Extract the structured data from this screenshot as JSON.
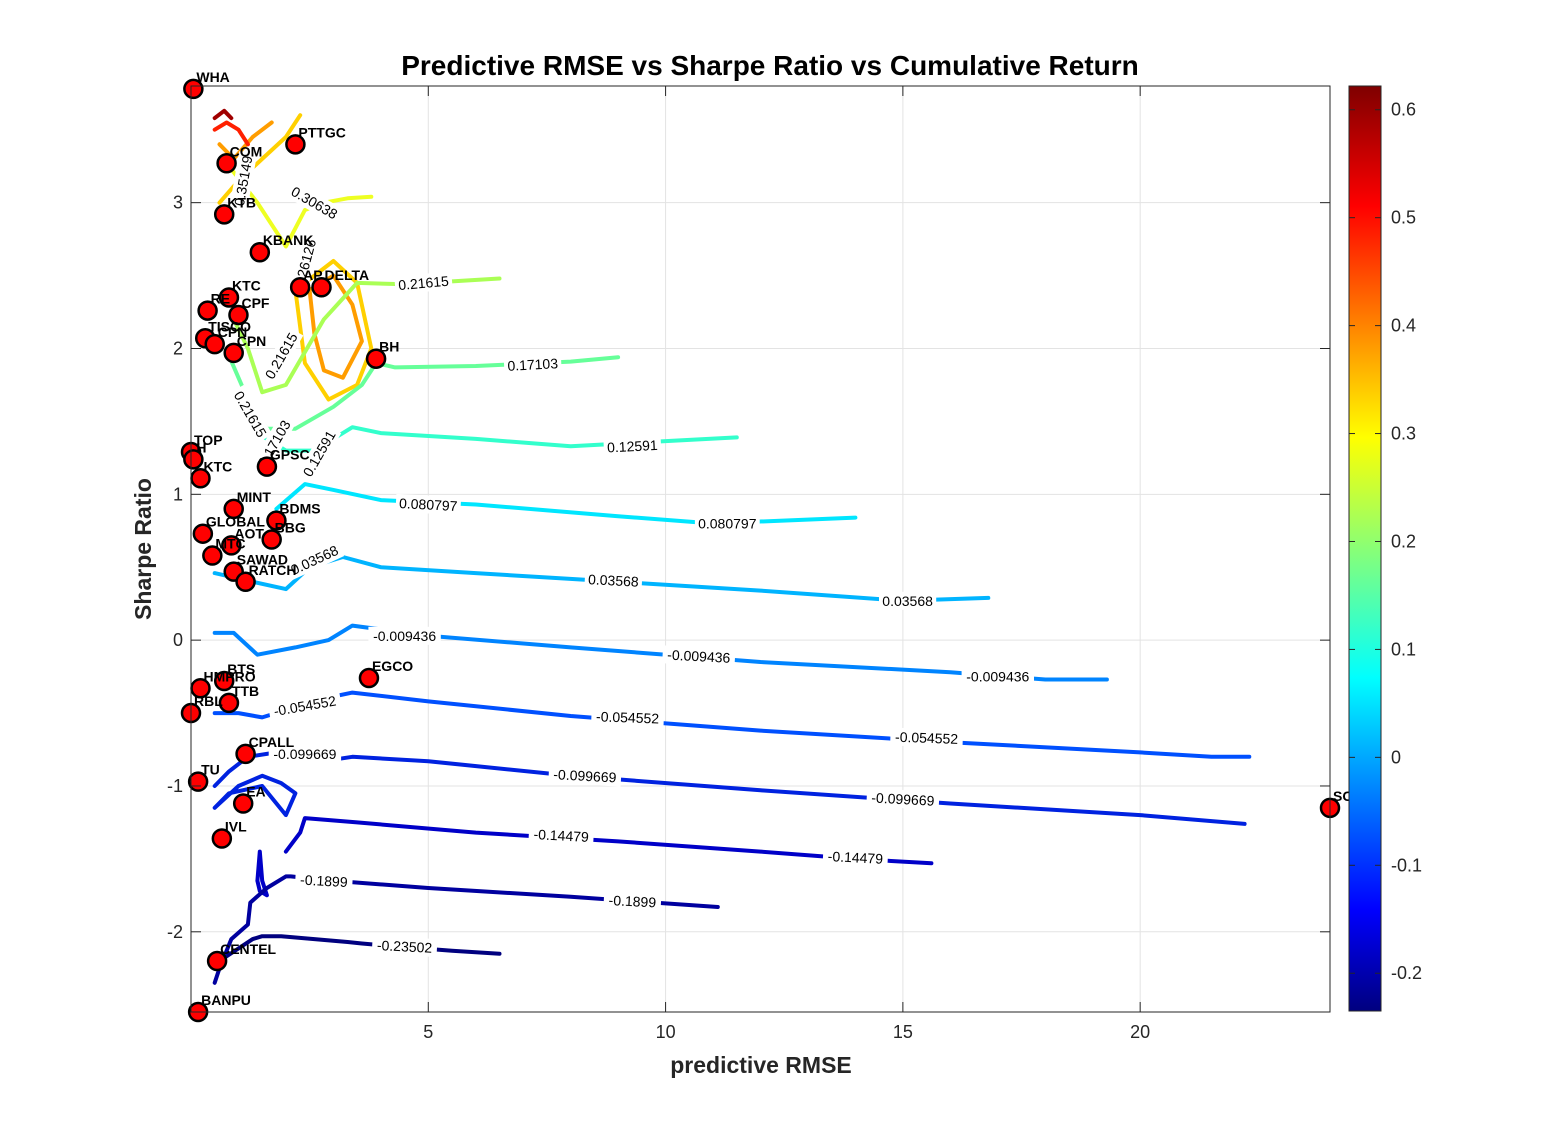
{
  "chart_data": {
    "type": "scatter",
    "title": "Predictive RMSE vs Sharpe Ratio vs Cumulative Return",
    "xlabel": "predictive RMSE",
    "ylabel": "Sharpe Ratio",
    "xlim": [
      0,
      24
    ],
    "ylim": [
      -2.55,
      3.8
    ],
    "xticks": [
      5,
      10,
      15,
      20
    ],
    "yticks": [
      -2,
      -1,
      0,
      1,
      2,
      3
    ],
    "grid": true,
    "colorbar": {
      "colormap": "jet",
      "clim": [
        -0.235,
        0.622
      ],
      "ticks": [
        -0.2,
        -0.1,
        0,
        0.1,
        0.2,
        0.3,
        0.4,
        0.5,
        0.6
      ]
    },
    "points": [
      {
        "label": "WHA",
        "x": 0.05,
        "y": 3.78
      },
      {
        "label": "PTTGC",
        "x": 2.2,
        "y": 3.4
      },
      {
        "label": "COM",
        "x": 0.75,
        "y": 3.27
      },
      {
        "label": "KTB",
        "x": 0.7,
        "y": 2.92
      },
      {
        "label": "KBANK",
        "x": 1.45,
        "y": 2.66
      },
      {
        "label": "AP",
        "x": 2.3,
        "y": 2.42
      },
      {
        "label": "DELTA",
        "x": 2.75,
        "y": 2.42
      },
      {
        "label": "KTC",
        "x": 0.8,
        "y": 2.35
      },
      {
        "label": "RE",
        "x": 0.35,
        "y": 2.26
      },
      {
        "label": "CPF",
        "x": 1.0,
        "y": 2.23
      },
      {
        "label": "TISCO",
        "x": 0.3,
        "y": 2.07
      },
      {
        "label": "CPN",
        "x": 0.5,
        "y": 2.03
      },
      {
        "label": "CPN",
        "x": 0.9,
        "y": 1.97
      },
      {
        "label": "BH",
        "x": 3.9,
        "y": 1.93
      },
      {
        "label": "TOP",
        "x": 0.0,
        "y": 1.29
      },
      {
        "label": "H",
        "x": 0.05,
        "y": 1.24
      },
      {
        "label": "KTC",
        "x": 0.2,
        "y": 1.11
      },
      {
        "label": "GPSC",
        "x": 1.6,
        "y": 1.19
      },
      {
        "label": "MINT",
        "x": 0.9,
        "y": 0.9
      },
      {
        "label": "BDMS",
        "x": 1.8,
        "y": 0.82
      },
      {
        "label": "GLOBAL",
        "x": 0.25,
        "y": 0.73
      },
      {
        "label": "BBG",
        "x": 1.7,
        "y": 0.69
      },
      {
        "label": "AOT",
        "x": 0.85,
        "y": 0.65
      },
      {
        "label": "MTC",
        "x": 0.45,
        "y": 0.58
      },
      {
        "label": "SAWAD",
        "x": 0.9,
        "y": 0.47
      },
      {
        "label": "RATCH",
        "x": 1.15,
        "y": 0.4
      },
      {
        "label": "EGCO",
        "x": 3.75,
        "y": -0.26
      },
      {
        "label": "BTS",
        "x": 0.7,
        "y": -0.28
      },
      {
        "label": "HMPRO",
        "x": 0.2,
        "y": -0.33
      },
      {
        "label": "TTB",
        "x": 0.8,
        "y": -0.43
      },
      {
        "label": "RBL",
        "x": 0.0,
        "y": -0.5
      },
      {
        "label": "CPALL",
        "x": 1.15,
        "y": -0.78
      },
      {
        "label": "TU",
        "x": 0.15,
        "y": -0.97
      },
      {
        "label": "EA",
        "x": 1.1,
        "y": -1.12
      },
      {
        "label": "IVL",
        "x": 0.65,
        "y": -1.36
      },
      {
        "label": "SC",
        "x": 24.0,
        "y": -1.15
      },
      {
        "label": "CENTEL",
        "x": 0.55,
        "y": -2.2
      },
      {
        "label": "BANPU",
        "x": 0.15,
        "y": -2.55
      }
    ],
    "contour_lines": [
      {
        "level": -0.23502,
        "color": "#00007f",
        "x": [
          0.6,
          1.3,
          1.5,
          1.9,
          2.6,
          3.3,
          3.6,
          4.3,
          5.5,
          6.5
        ],
        "y": [
          -2.2,
          -2.05,
          -2.03,
          -2.03,
          -2.05,
          -2.07,
          -2.08,
          -2.1,
          -2.13,
          -2.15
        ],
        "labels": [
          {
            "x": 4.5,
            "y": -2.1,
            "text": "-0.23502",
            "rot": 3
          }
        ]
      },
      {
        "level": -0.1899,
        "color": "#00009f",
        "x": [
          0.5,
          0.6,
          0.85,
          1.2,
          1.25,
          1.6,
          2.0,
          2.1,
          3.0,
          5.0,
          8.0,
          11.1
        ],
        "y": [
          -2.35,
          -2.25,
          -2.05,
          -1.95,
          -1.8,
          -1.7,
          -1.62,
          -1.62,
          -1.65,
          -1.7,
          -1.76,
          -1.83
        ],
        "labels": [
          {
            "x": 2.8,
            "y": -1.65,
            "text": "-0.1899",
            "rot": 3
          },
          {
            "x": 9.3,
            "y": -1.79,
            "text": "-0.1899",
            "rot": 3
          }
        ]
      },
      {
        "level": -0.14479,
        "color": "#0000c8",
        "x": [
          2.0,
          2.3,
          2.4,
          3.5,
          6.0,
          9.0,
          12.0,
          14.0,
          15.6
        ],
        "y": [
          -1.45,
          -1.32,
          -1.22,
          -1.25,
          -1.32,
          -1.38,
          -1.45,
          -1.5,
          -1.53
        ],
        "labels": [
          {
            "x": 7.8,
            "y": -1.34,
            "text": "-0.14479",
            "rot": 3
          },
          {
            "x": 14.0,
            "y": -1.49,
            "text": "-0.14479",
            "rot": 3
          }
        ]
      },
      {
        "level": -0.099669,
        "color": "#0022e0",
        "x": [
          0.5,
          0.8,
          1.2,
          1.8,
          2.5,
          3.0,
          3.4,
          5.0,
          8.0,
          12.0,
          16.0,
          20.0,
          22.2
        ],
        "y": [
          -1.0,
          -0.9,
          -0.8,
          -0.77,
          -0.78,
          -0.82,
          -0.8,
          -0.83,
          -0.93,
          -1.03,
          -1.12,
          -1.2,
          -1.26
        ],
        "labels": [
          {
            "x": 2.4,
            "y": -0.78,
            "text": "-0.099669",
            "rot": 0
          },
          {
            "x": 8.3,
            "y": -0.93,
            "text": "-0.099669",
            "rot": 3
          },
          {
            "x": 15.0,
            "y": -1.09,
            "text": "-0.099669",
            "rot": 3
          }
        ]
      },
      {
        "level": -0.054552,
        "color": "#0050ff",
        "x": [
          0.5,
          1.0,
          1.5,
          2.0,
          2.8,
          3.4,
          5.0,
          8.0,
          12.0,
          16.0,
          20.0,
          21.5,
          22.3
        ],
        "y": [
          -0.5,
          -0.5,
          -0.53,
          -0.48,
          -0.4,
          -0.36,
          -0.42,
          -0.52,
          -0.62,
          -0.7,
          -0.77,
          -0.8,
          -0.8
        ],
        "labels": [
          {
            "x": 2.4,
            "y": -0.45,
            "text": "-0.054552",
            "rot": -10
          },
          {
            "x": 9.2,
            "y": -0.53,
            "text": "-0.054552",
            "rot": 2
          },
          {
            "x": 15.5,
            "y": -0.67,
            "text": "-0.054552",
            "rot": 2
          }
        ]
      },
      {
        "level": -0.009436,
        "color": "#0084ff",
        "x": [
          0.5,
          0.9,
          1.4,
          2.2,
          2.9,
          3.4,
          5.0,
          8.0,
          12.0,
          16.0,
          18.0,
          18.5,
          19.3
        ],
        "y": [
          0.05,
          0.05,
          -0.1,
          -0.05,
          0.0,
          0.1,
          0.03,
          -0.05,
          -0.15,
          -0.22,
          -0.27,
          -0.27,
          -0.27
        ],
        "labels": [
          {
            "x": 4.5,
            "y": 0.03,
            "text": "-0.009436",
            "rot": 0
          },
          {
            "x": 10.7,
            "y": -0.11,
            "text": "-0.009436",
            "rot": 3
          },
          {
            "x": 17.0,
            "y": -0.25,
            "text": "-0.009436",
            "rot": 0
          }
        ]
      },
      {
        "level": 0.03568,
        "color": "#00b4ff",
        "x": [
          0.5,
          1.3,
          2.0,
          2.5,
          3.2,
          4.0,
          6.0,
          9.0,
          12.0,
          15.0,
          16.8
        ],
        "y": [
          0.46,
          0.4,
          0.35,
          0.5,
          0.57,
          0.5,
          0.46,
          0.4,
          0.34,
          0.27,
          0.29
        ],
        "labels": [
          {
            "x": 2.6,
            "y": 0.55,
            "text": "0.03568",
            "rot": -25
          },
          {
            "x": 8.9,
            "y": 0.41,
            "text": "0.03568",
            "rot": 3
          },
          {
            "x": 15.1,
            "y": 0.27,
            "text": "0.03568",
            "rot": 0
          }
        ]
      },
      {
        "level": 0.080797,
        "color": "#00e6ff",
        "x": [
          1.8,
          2.4,
          3.0,
          4.0,
          6.0,
          9.0,
          11.0,
          14.0
        ],
        "y": [
          0.9,
          1.07,
          1.03,
          0.96,
          0.93,
          0.85,
          0.8,
          0.84
        ],
        "labels": [
          {
            "x": 5.0,
            "y": 0.93,
            "text": "0.080797",
            "rot": 3
          },
          {
            "x": 11.3,
            "y": 0.8,
            "text": "0.080797",
            "rot": 0
          }
        ]
      },
      {
        "level": 0.12591,
        "color": "#33ffcc",
        "x": [
          1.0,
          1.5,
          2.0,
          2.6,
          3.4,
          4.0,
          6.0,
          8.0,
          11.5
        ],
        "y": [
          1.6,
          1.4,
          1.3,
          1.3,
          1.46,
          1.42,
          1.38,
          1.33,
          1.39
        ],
        "labels": [
          {
            "x": 2.7,
            "y": 1.28,
            "text": "0.12591",
            "rot": -60
          },
          {
            "x": 9.3,
            "y": 1.33,
            "text": "0.12591",
            "rot": -3
          }
        ]
      },
      {
        "level": 0.17103,
        "color": "#66ff99",
        "x": [
          0.8,
          1.2,
          1.6,
          2.2,
          3.0,
          3.6,
          3.9,
          4.3,
          6.0,
          8.0,
          9.0
        ],
        "y": [
          1.95,
          1.65,
          1.45,
          1.45,
          1.6,
          1.75,
          1.9,
          1.87,
          1.88,
          1.91,
          1.94
        ],
        "labels": [
          {
            "x": 1.75,
            "y": 1.35,
            "text": "0.17103",
            "rot": -60
          },
          {
            "x": 7.2,
            "y": 1.89,
            "text": "0.17103",
            "rot": -3
          }
        ]
      },
      {
        "level": 0.21615,
        "color": "#aaff55",
        "x": [
          0.9,
          1.2,
          1.5,
          2.0,
          2.8,
          3.5,
          4.5,
          6.5
        ],
        "y": [
          2.2,
          2.0,
          1.7,
          1.75,
          2.2,
          2.45,
          2.44,
          2.48
        ],
        "labels": [
          {
            "x": 1.9,
            "y": 1.95,
            "text": "0.21615",
            "rot": -60
          },
          {
            "x": 1.25,
            "y": 1.55,
            "text": "0.21615",
            "rot": 60
          },
          {
            "x": 4.9,
            "y": 2.45,
            "text": "0.21615",
            "rot": -5
          }
        ]
      },
      {
        "level": 0.26126,
        "color": "#eeff22",
        "x": [
          0.8,
          1.4,
          2.0,
          2.4,
          2.8,
          3.3,
          3.8
        ],
        "y": [
          3.25,
          3.0,
          2.7,
          2.95,
          3.0,
          3.03,
          3.04
        ],
        "labels": [
          {
            "x": 2.4,
            "y": 2.58,
            "text": "0.26126",
            "rot": -75
          }
        ]
      },
      {
        "level": 0.30638,
        "color": "#ffd000",
        "x": [
          0.6,
          1.0,
          1.5,
          2.0,
          2.3
        ],
        "y": [
          3.0,
          3.15,
          3.3,
          3.45,
          3.6
        ],
        "labels": [
          {
            "x": 2.6,
            "y": 3.0,
            "text": "0.30638",
            "rot": 30
          }
        ]
      },
      {
        "level": 0.35149,
        "color": "#ff9d00",
        "x": [
          0.6,
          0.9,
          1.3,
          1.7
        ],
        "y": [
          3.4,
          3.3,
          3.45,
          3.55
        ],
        "labels": [
          {
            "x": 1.1,
            "y": 3.15,
            "text": "0.35149",
            "rot": -80
          }
        ]
      },
      {
        "level": 0.5,
        "color": "#ff2000",
        "x": [
          0.5,
          0.75,
          1.0,
          1.2
        ],
        "y": [
          3.5,
          3.55,
          3.5,
          3.4
        ],
        "labels": []
      },
      {
        "level": 0.6,
        "color": "#a00000",
        "x": [
          0.5,
          0.7,
          0.85
        ],
        "y": [
          3.58,
          3.63,
          3.58
        ],
        "labels": []
      }
    ],
    "contour_patches": [
      {
        "color": "#ff9d00",
        "x": [
          2.5,
          3.0,
          3.4,
          3.6,
          3.2,
          2.8,
          2.6,
          2.5
        ],
        "y": [
          2.4,
          2.5,
          2.3,
          2.05,
          1.8,
          1.85,
          2.1,
          2.4
        ]
      },
      {
        "color": "#ffd000",
        "x": [
          2.2,
          3.0,
          3.5,
          3.8,
          3.5,
          2.9,
          2.4,
          2.2
        ],
        "y": [
          2.4,
          2.6,
          2.45,
          2.0,
          1.75,
          1.65,
          1.9,
          2.4
        ]
      },
      {
        "color": "#0000c8",
        "x": [
          1.4,
          1.45,
          1.5,
          1.6,
          1.45,
          1.4
        ],
        "y": [
          -1.65,
          -1.45,
          -1.65,
          -1.75,
          -1.72,
          -1.65
        ]
      },
      {
        "color": "#0022e0",
        "x": [
          0.5,
          1.0,
          1.5,
          1.9,
          2.2,
          2.0,
          1.5,
          0.8,
          0.5
        ],
        "y": [
          -1.15,
          -1.0,
          -0.93,
          -0.98,
          -1.05,
          -1.2,
          -1.0,
          -1.05,
          -1.15
        ]
      }
    ]
  }
}
